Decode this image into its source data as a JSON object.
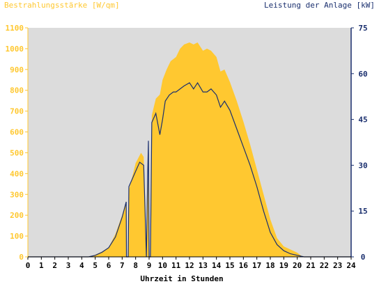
{
  "chart_data": {
    "type": "area",
    "title_left": "Bestrahlungsstärke [W/qm]",
    "title_right": "Leistung der Anlage [kW]",
    "xlabel": "Uhrzeit in Stunden",
    "xlim": [
      0,
      24
    ],
    "ylim_left": [
      0,
      1100
    ],
    "ylim_right": [
      0,
      75
    ],
    "x_ticks": [
      "0",
      "1",
      "2",
      "3",
      "4",
      "5",
      "6",
      "7",
      "8",
      "9",
      "10",
      "11",
      "12",
      "13",
      "14",
      "15",
      "16",
      "17",
      "18",
      "19",
      "20",
      "21",
      "22",
      "23",
      "24"
    ],
    "y_left_ticks": [
      "0",
      "100",
      "200",
      "300",
      "400",
      "500",
      "600",
      "700",
      "800",
      "900",
      "1000",
      "1100"
    ],
    "y_right_ticks": [
      "0",
      "15",
      "30",
      "45",
      "60",
      "75"
    ],
    "grid": false,
    "colors": {
      "plot_bg": "#dcdcdc",
      "irradiance": "#ffc830",
      "power": "#1a2f6e",
      "left_axis_text": "#ffc830",
      "right_axis_text": "#1a2f6e"
    },
    "series": [
      {
        "name": "Bestrahlungsstärke [W/qm]",
        "axis": "left",
        "points": [
          [
            0,
            0
          ],
          [
            4.5,
            0
          ],
          [
            5.0,
            10
          ],
          [
            5.5,
            25
          ],
          [
            6.0,
            45
          ],
          [
            6.5,
            110
          ],
          [
            7.0,
            200
          ],
          [
            7.3,
            270
          ],
          [
            7.35,
            0
          ],
          [
            7.45,
            0
          ],
          [
            7.5,
            320
          ],
          [
            8.0,
            450
          ],
          [
            8.4,
            500
          ],
          [
            8.6,
            480
          ],
          [
            8.8,
            0
          ],
          [
            8.9,
            500
          ],
          [
            9.0,
            0
          ],
          [
            9.1,
            0
          ],
          [
            9.2,
            680
          ],
          [
            9.5,
            760
          ],
          [
            9.8,
            780
          ],
          [
            10.0,
            850
          ],
          [
            10.3,
            900
          ],
          [
            10.6,
            940
          ],
          [
            11.0,
            960
          ],
          [
            11.3,
            1000
          ],
          [
            11.6,
            1020
          ],
          [
            12.0,
            1030
          ],
          [
            12.3,
            1020
          ],
          [
            12.6,
            1030
          ],
          [
            13.0,
            990
          ],
          [
            13.3,
            1000
          ],
          [
            13.6,
            990
          ],
          [
            14.0,
            960
          ],
          [
            14.3,
            890
          ],
          [
            14.6,
            900
          ],
          [
            15.0,
            840
          ],
          [
            15.5,
            750
          ],
          [
            16.0,
            650
          ],
          [
            16.5,
            540
          ],
          [
            17.0,
            420
          ],
          [
            17.5,
            300
          ],
          [
            18.0,
            180
          ],
          [
            18.5,
            90
          ],
          [
            19.0,
            50
          ],
          [
            19.5,
            35
          ],
          [
            20.0,
            20
          ],
          [
            20.3,
            5
          ],
          [
            20.5,
            0
          ],
          [
            24,
            0
          ]
        ]
      },
      {
        "name": "Leistung der Anlage [kW]",
        "axis": "right",
        "points": [
          [
            0,
            0
          ],
          [
            4.5,
            0
          ],
          [
            5.0,
            0.5
          ],
          [
            5.5,
            1.5
          ],
          [
            6.0,
            3
          ],
          [
            6.5,
            6.5
          ],
          [
            7.0,
            13
          ],
          [
            7.3,
            18
          ],
          [
            7.32,
            0
          ],
          [
            7.45,
            0
          ],
          [
            7.5,
            23
          ],
          [
            8.0,
            28
          ],
          [
            8.3,
            31
          ],
          [
            8.6,
            30
          ],
          [
            8.8,
            0
          ],
          [
            8.9,
            28
          ],
          [
            8.95,
            38
          ],
          [
            9.0,
            0
          ],
          [
            9.1,
            0
          ],
          [
            9.2,
            44
          ],
          [
            9.5,
            47
          ],
          [
            9.8,
            40
          ],
          [
            10.0,
            45
          ],
          [
            10.2,
            51
          ],
          [
            10.5,
            53
          ],
          [
            10.8,
            54
          ],
          [
            11.0,
            54
          ],
          [
            11.3,
            55
          ],
          [
            11.6,
            56
          ],
          [
            12.0,
            57
          ],
          [
            12.3,
            55
          ],
          [
            12.6,
            57
          ],
          [
            13.0,
            54
          ],
          [
            13.3,
            54
          ],
          [
            13.6,
            55
          ],
          [
            14.0,
            53
          ],
          [
            14.3,
            49
          ],
          [
            14.6,
            51
          ],
          [
            15.0,
            48
          ],
          [
            15.5,
            42
          ],
          [
            16.0,
            36
          ],
          [
            16.5,
            30
          ],
          [
            17.0,
            23
          ],
          [
            17.5,
            15
          ],
          [
            18.0,
            8
          ],
          [
            18.5,
            4
          ],
          [
            19.0,
            2
          ],
          [
            19.5,
            1
          ],
          [
            20.0,
            0.5
          ],
          [
            20.5,
            0
          ],
          [
            24,
            0
          ]
        ]
      }
    ]
  }
}
